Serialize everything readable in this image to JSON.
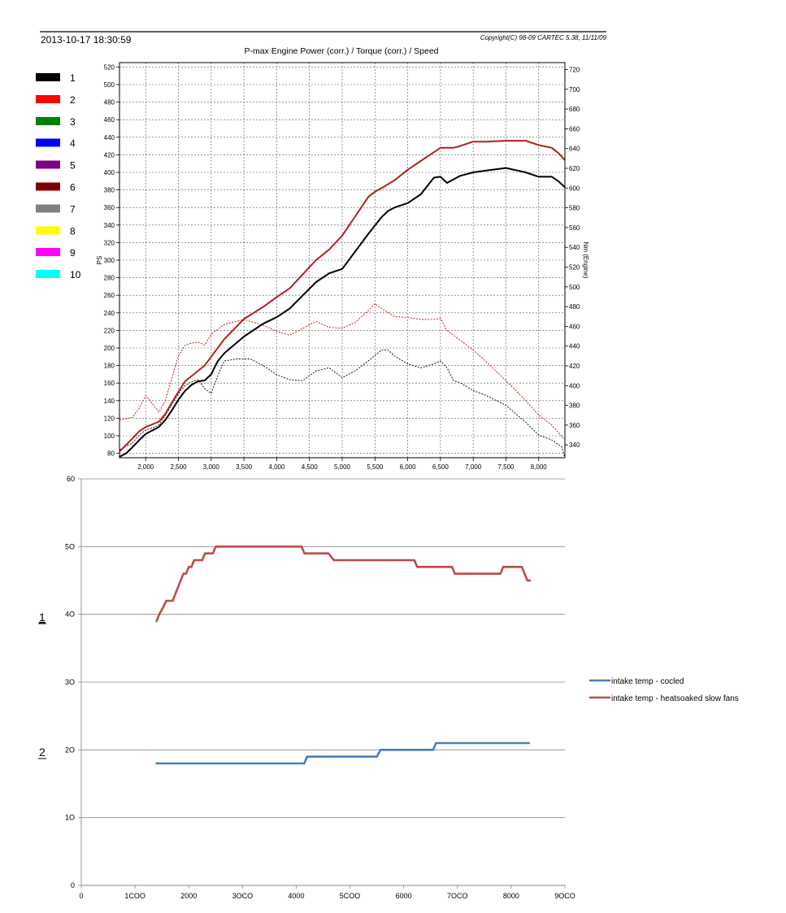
{
  "header": {
    "datetime": "2013-10-17 18:30:59",
    "copyright": "Copyright(C) 98-09 CARTEC 5.38, 11/11/09"
  },
  "run_legend": [
    {
      "label": "1",
      "color": "#000000"
    },
    {
      "label": "2",
      "color": "#ff0000"
    },
    {
      "label": "3",
      "color": "#008000"
    },
    {
      "label": "4",
      "color": "#0000ff"
    },
    {
      "label": "5",
      "color": "#800080"
    },
    {
      "label": "6",
      "color": "#800000"
    },
    {
      "label": "7",
      "color": "#808080"
    },
    {
      "label": "8",
      "color": "#ffff00"
    },
    {
      "label": "9",
      "color": "#ff00ff"
    },
    {
      "label": "10",
      "color": "#00ffff"
    }
  ],
  "side_markers": [
    "1",
    "2"
  ],
  "chart_data": [
    {
      "type": "line",
      "title": "P-max Engine Power (corr.) / Torque (corr.) / Speed",
      "xlabel": "",
      "ylabel": "PS",
      "y2label": "Nm (Engine)",
      "xlim": [
        1600,
        8400
      ],
      "ylim": [
        75,
        525
      ],
      "y2lim": [
        327,
        727
      ],
      "x_ticks": [
        2000,
        2500,
        3000,
        3500,
        4000,
        4500,
        5000,
        5500,
        6000,
        6500,
        7000,
        7500,
        8000
      ],
      "x_tick_labels": [
        "2,000",
        "2,500",
        "3,000",
        "3,500",
        "4,000",
        "4,500",
        "5,000",
        "5,500",
        "6,000",
        "6,500",
        "7,000",
        "7,500",
        "8,000"
      ],
      "y_ticks": [
        80,
        100,
        120,
        140,
        160,
        180,
        200,
        220,
        240,
        260,
        280,
        300,
        320,
        340,
        360,
        380,
        400,
        420,
        440,
        460,
        480,
        500,
        520
      ],
      "y2_ticks": [
        340,
        360,
        380,
        400,
        420,
        440,
        460,
        480,
        500,
        520,
        540,
        560,
        580,
        600,
        620,
        640,
        660,
        680,
        700,
        720
      ],
      "grid": true,
      "series": [
        {
          "run": "2",
          "quantity": "torque",
          "axis": "right",
          "style": "dashed",
          "color": "#cc0000",
          "x": [
            1600,
            1800,
            1900,
            2000,
            2100,
            2200,
            2300,
            2500,
            2600,
            2700,
            2800,
            2900,
            3000,
            3200,
            3500,
            3800,
            4000,
            4200,
            4400,
            4600,
            4800,
            5000,
            5200,
            5400,
            5500,
            5600,
            5800,
            6000,
            6200,
            6400,
            6500,
            6600,
            6800,
            7000,
            7200,
            7500,
            7800,
            8000,
            8200,
            8400
          ],
          "y": [
            365,
            368,
            377,
            390,
            382,
            373,
            385,
            430,
            441,
            443,
            444,
            441,
            452,
            462,
            467,
            461,
            455,
            451,
            458,
            465,
            459,
            458,
            464,
            476,
            483,
            478,
            470,
            469,
            467,
            467,
            468,
            456,
            446,
            436,
            424,
            405,
            385,
            370,
            360,
            345
          ]
        },
        {
          "run": "1",
          "quantity": "torque",
          "axis": "right",
          "style": "dashed",
          "color": "#000000",
          "x": [
            1600,
            1800,
            1900,
            2000,
            2100,
            2200,
            2300,
            2500,
            2600,
            2700,
            2800,
            2900,
            3000,
            3100,
            3200,
            3400,
            3600,
            3800,
            4000,
            4200,
            4400,
            4600,
            4800,
            5000,
            5200,
            5400,
            5600,
            5700,
            5800,
            6000,
            6200,
            6400,
            6500,
            6600,
            6700,
            6800,
            7000,
            7200,
            7500,
            7800,
            8000,
            8200,
            8350,
            8400
          ],
          "y": [
            335,
            342,
            350,
            355,
            357,
            360,
            370,
            392,
            400,
            404,
            406,
            397,
            392,
            410,
            425,
            427,
            427,
            420,
            411,
            406,
            405,
            415,
            418,
            408,
            415,
            425,
            436,
            436,
            430,
            422,
            418,
            422,
            425,
            418,
            405,
            403,
            395,
            390,
            380,
            363,
            350,
            345,
            338,
            327
          ]
        },
        {
          "run": "2",
          "quantity": "power",
          "axis": "left",
          "style": "solid",
          "color": "#b02020",
          "x": [
            1600,
            1800,
            1900,
            2000,
            2100,
            2200,
            2300,
            2400,
            2500,
            2600,
            2700,
            2800,
            2900,
            3000,
            3200,
            3500,
            3800,
            4000,
            4200,
            4400,
            4600,
            4800,
            5000,
            5200,
            5400,
            5500,
            5600,
            5800,
            6000,
            6200,
            6400,
            6500,
            6600,
            6700,
            6800,
            7000,
            7200,
            7500,
            7800,
            8000,
            8200,
            8300,
            8400
          ],
          "y": [
            82,
            97,
            105,
            110,
            113,
            116,
            125,
            138,
            150,
            162,
            168,
            174,
            180,
            190,
            210,
            233,
            247,
            258,
            268,
            284,
            300,
            312,
            328,
            350,
            372,
            378,
            382,
            391,
            403,
            413,
            423,
            428,
            428,
            428,
            430,
            435,
            435,
            436,
            436,
            431,
            428,
            422,
            414
          ]
        },
        {
          "run": "1",
          "quantity": "power",
          "axis": "left",
          "style": "solid",
          "color": "#000000",
          "x": [
            1600,
            1700,
            1800,
            1900,
            2000,
            2100,
            2200,
            2300,
            2400,
            2500,
            2600,
            2700,
            2800,
            2900,
            3000,
            3100,
            3200,
            3500,
            3800,
            4000,
            4200,
            4400,
            4600,
            4800,
            5000,
            5200,
            5400,
            5600,
            5700,
            5800,
            6000,
            6200,
            6400,
            6500,
            6600,
            6700,
            6800,
            7000,
            7200,
            7500,
            7800,
            8000,
            8200,
            8300,
            8400
          ],
          "y": [
            76,
            80,
            87,
            95,
            102,
            106,
            110,
            118,
            129,
            141,
            151,
            158,
            162,
            163,
            170,
            185,
            194,
            213,
            228,
            235,
            245,
            260,
            275,
            285,
            290,
            310,
            330,
            349,
            356,
            360,
            365,
            375,
            394,
            395,
            388,
            392,
            396,
            400,
            402,
            405,
            400,
            395,
            395,
            390,
            383
          ]
        }
      ]
    },
    {
      "type": "line",
      "title": "",
      "xlabel": "",
      "ylabel": "",
      "xlim": [
        0,
        9000
      ],
      "ylim": [
        0,
        60
      ],
      "x_ticks": [
        0,
        1000,
        2000,
        3000,
        4000,
        5000,
        6000,
        7000,
        8000,
        9000
      ],
      "x_tick_labels": [
        "0",
        "1COO",
        "2000",
        "3OCO",
        "4000",
        "5COO",
        "6000",
        "7OCO",
        "8000",
        "9OCO"
      ],
      "y_ticks": [
        0,
        10,
        20,
        30,
        40,
        50,
        60
      ],
      "y_tick_labels": [
        "0",
        "1O",
        "2O",
        "3O",
        "4O",
        "5O",
        "60"
      ],
      "grid": "horizontal",
      "legend": "right",
      "series": [
        {
          "name": "intake temp - cocled",
          "color": "#4a7ebb",
          "x": [
            1400,
            4150,
            4200,
            5450,
            5500,
            5570,
            6550,
            6600,
            8330
          ],
          "y": [
            18,
            18,
            19,
            19,
            19,
            20,
            20,
            21,
            21
          ]
        },
        {
          "name": "intake temp - heatsoaked slow fans",
          "color": "#be4b48",
          "x": [
            1400,
            1450,
            1520,
            1580,
            1700,
            1750,
            1800,
            1850,
            1900,
            1950,
            2000,
            2050,
            2100,
            2200,
            2250,
            2300,
            2400,
            2450,
            2500,
            2600,
            4000,
            4050,
            4100,
            4150,
            4200,
            4600,
            4700,
            4800,
            6200,
            6250,
            6300,
            6900,
            6950,
            7800,
            7850,
            8200,
            8250,
            8300,
            8350
          ],
          "y": [
            39,
            40,
            41,
            42,
            42,
            43,
            44,
            45,
            46,
            46,
            47,
            47,
            48,
            48,
            48,
            49,
            49,
            49,
            50,
            50,
            50,
            50,
            50,
            49,
            49,
            49,
            48,
            48,
            48,
            47,
            47,
            47,
            46,
            46,
            47,
            47,
            46,
            45,
            45
          ]
        }
      ]
    }
  ]
}
